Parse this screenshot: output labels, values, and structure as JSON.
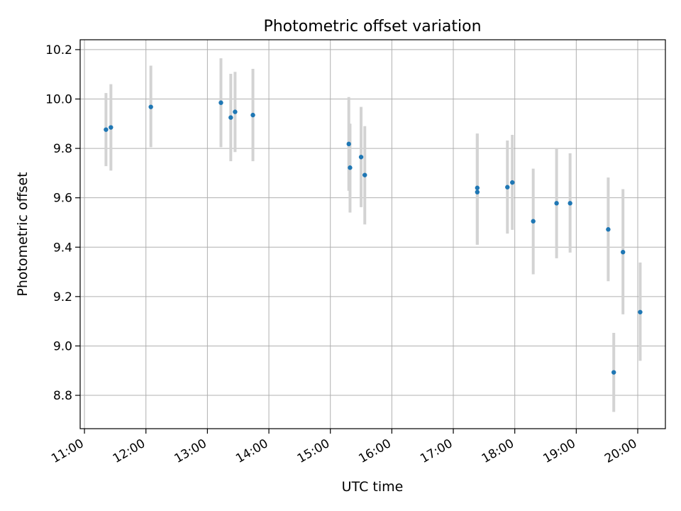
{
  "chart_data": {
    "type": "scatter",
    "title": "Photometric offset variation",
    "xlabel": "UTC time",
    "ylabel": "Photometric offset",
    "x_unit": "hour",
    "xlim": [
      10.93,
      20.45
    ],
    "ylim": [
      8.665,
      10.24
    ],
    "x_ticks": [
      11,
      12,
      13,
      14,
      15,
      16,
      17,
      18,
      19,
      20
    ],
    "x_tick_labels": [
      "11:00",
      "12:00",
      "13:00",
      "14:00",
      "15:00",
      "16:00",
      "17:00",
      "18:00",
      "19:00",
      "20:00"
    ],
    "y_ticks": [
      8.8,
      9.0,
      9.2,
      9.4,
      9.6,
      9.8,
      10.0,
      10.2
    ],
    "y_tick_labels": [
      "8.8",
      "9.0",
      "9.2",
      "9.4",
      "9.6",
      "9.8",
      "10.0",
      "10.2"
    ],
    "grid": true,
    "marker_color": "#1f77b4",
    "errorbar_color": "#d3d3d3",
    "points": [
      {
        "x": 11.35,
        "y": 9.876,
        "lo": 9.728,
        "hi": 10.024
      },
      {
        "x": 11.43,
        "y": 9.885,
        "lo": 9.71,
        "hi": 10.06
      },
      {
        "x": 12.08,
        "y": 9.968,
        "lo": 9.805,
        "hi": 10.135
      },
      {
        "x": 13.22,
        "y": 9.985,
        "lo": 9.805,
        "hi": 10.165
      },
      {
        "x": 13.38,
        "y": 9.925,
        "lo": 9.748,
        "hi": 10.102
      },
      {
        "x": 13.45,
        "y": 9.948,
        "lo": 9.785,
        "hi": 10.11
      },
      {
        "x": 13.74,
        "y": 9.935,
        "lo": 9.748,
        "hi": 10.122
      },
      {
        "x": 15.3,
        "y": 9.818,
        "lo": 9.628,
        "hi": 10.008
      },
      {
        "x": 15.32,
        "y": 9.722,
        "lo": 9.54,
        "hi": 9.9
      },
      {
        "x": 15.5,
        "y": 9.765,
        "lo": 9.562,
        "hi": 9.968
      },
      {
        "x": 15.56,
        "y": 9.692,
        "lo": 9.492,
        "hi": 9.89
      },
      {
        "x": 17.39,
        "y": 9.64,
        "lo": 9.41,
        "hi": 9.86
      },
      {
        "x": 17.39,
        "y": 9.623,
        "lo": 9.41,
        "hi": 9.86
      },
      {
        "x": 17.88,
        "y": 9.643,
        "lo": 9.455,
        "hi": 9.832
      },
      {
        "x": 17.96,
        "y": 9.662,
        "lo": 9.47,
        "hi": 9.855
      },
      {
        "x": 18.3,
        "y": 9.505,
        "lo": 9.29,
        "hi": 9.718
      },
      {
        "x": 18.68,
        "y": 9.578,
        "lo": 9.355,
        "hi": 9.8
      },
      {
        "x": 18.9,
        "y": 9.578,
        "lo": 9.378,
        "hi": 9.78
      },
      {
        "x": 19.52,
        "y": 9.472,
        "lo": 9.262,
        "hi": 9.682
      },
      {
        "x": 19.61,
        "y": 8.893,
        "lo": 8.733,
        "hi": 9.053
      },
      {
        "x": 19.76,
        "y": 9.38,
        "lo": 9.128,
        "hi": 9.635
      },
      {
        "x": 20.04,
        "y": 9.137,
        "lo": 8.94,
        "hi": 9.338
      }
    ]
  }
}
